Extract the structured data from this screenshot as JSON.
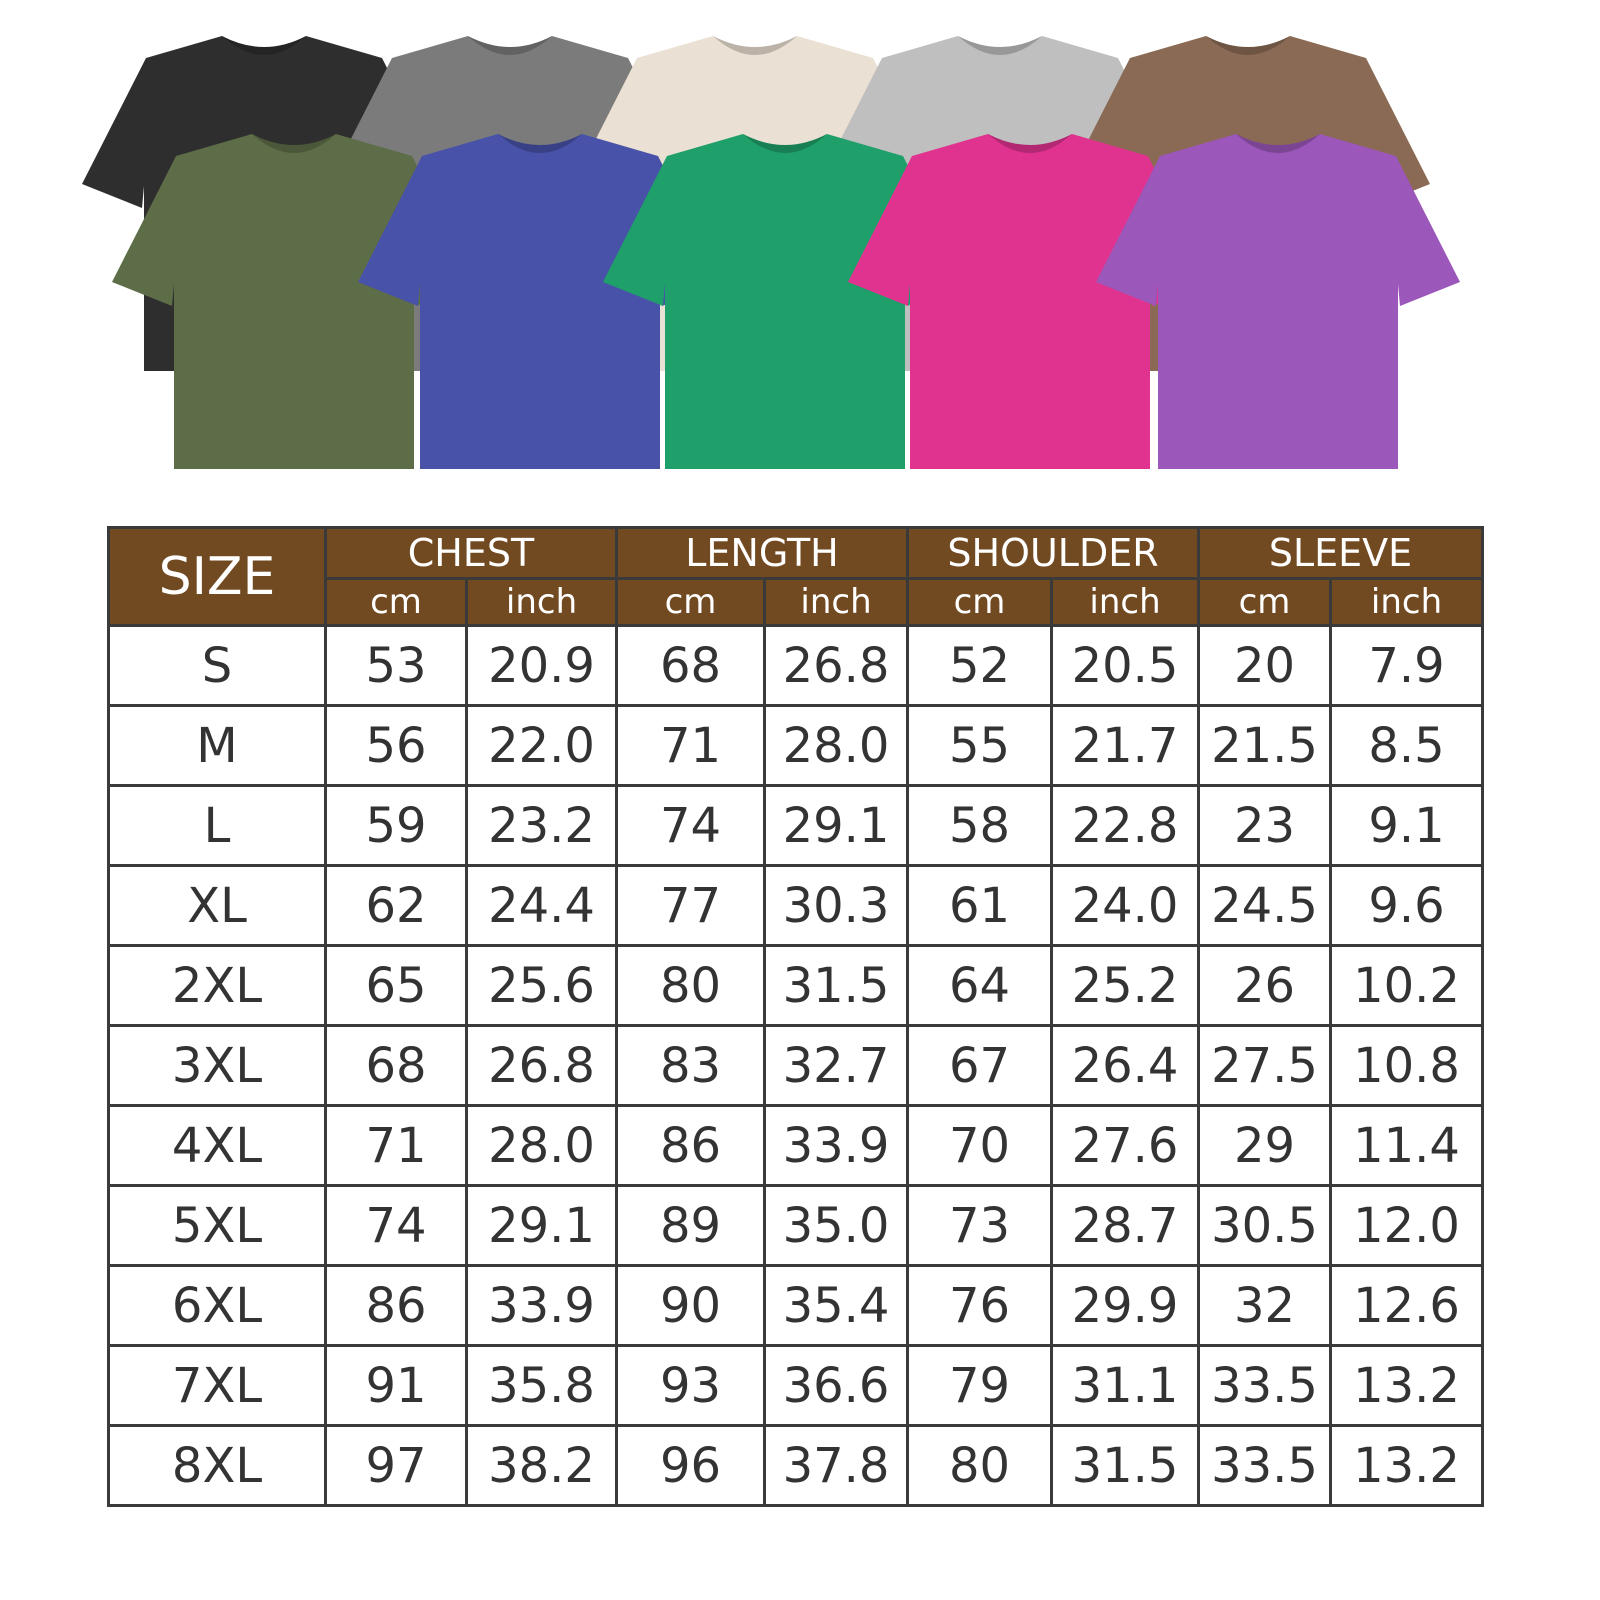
{
  "shirts": {
    "colors_back": [
      "#2e2e2e",
      "#7b7b7b",
      "#eae0d3",
      "#bfbfbf",
      "#8a6a54"
    ],
    "colors_front": [
      "#5d6d47",
      "#4852a8",
      "#1f9f6a",
      "#e0338f",
      "#9b57b9"
    ]
  },
  "table": {
    "header_color": "#724a22",
    "size_label": "SIZE",
    "groups": [
      "CHEST",
      "LENGTH",
      "SHOULDER",
      "SLEEVE"
    ],
    "units": [
      "cm",
      "inch"
    ],
    "rows": [
      [
        "S",
        "53",
        "20.9",
        "68",
        "26.8",
        "52",
        "20.5",
        "20",
        "7.9"
      ],
      [
        "M",
        "56",
        "22.0",
        "71",
        "28.0",
        "55",
        "21.7",
        "21.5",
        "8.5"
      ],
      [
        "L",
        "59",
        "23.2",
        "74",
        "29.1",
        "58",
        "22.8",
        "23",
        "9.1"
      ],
      [
        "XL",
        "62",
        "24.4",
        "77",
        "30.3",
        "61",
        "24.0",
        "24.5",
        "9.6"
      ],
      [
        "2XL",
        "65",
        "25.6",
        "80",
        "31.5",
        "64",
        "25.2",
        "26",
        "10.2"
      ],
      [
        "3XL",
        "68",
        "26.8",
        "83",
        "32.7",
        "67",
        "26.4",
        "27.5",
        "10.8"
      ],
      [
        "4XL",
        "71",
        "28.0",
        "86",
        "33.9",
        "70",
        "27.6",
        "29",
        "11.4"
      ],
      [
        "5XL",
        "74",
        "29.1",
        "89",
        "35.0",
        "73",
        "28.7",
        "30.5",
        "12.0"
      ],
      [
        "6XL",
        "86",
        "33.9",
        "90",
        "35.4",
        "76",
        "29.9",
        "32",
        "12.6"
      ],
      [
        "7XL",
        "91",
        "35.8",
        "93",
        "36.6",
        "79",
        "31.1",
        "33.5",
        "13.2"
      ],
      [
        "8XL",
        "97",
        "38.2",
        "96",
        "37.8",
        "80",
        "31.5",
        "33.5",
        "13.2"
      ]
    ]
  }
}
